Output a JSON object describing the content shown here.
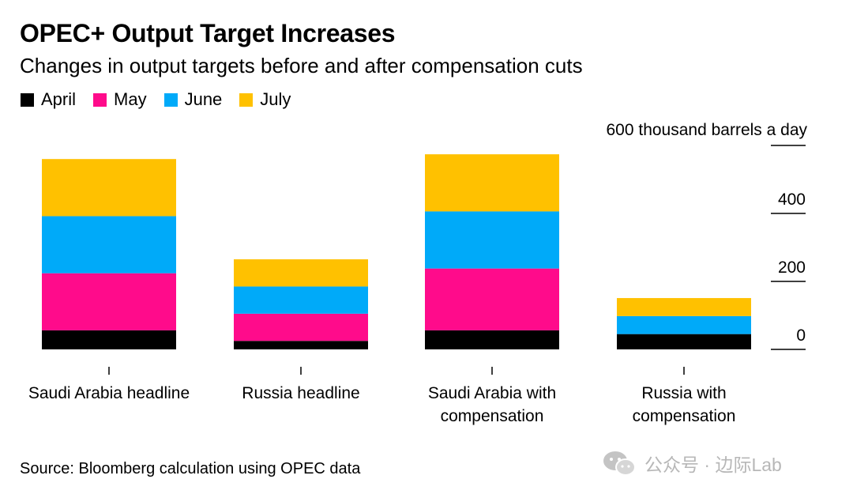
{
  "title": "OPEC+ Output Target Increases",
  "subtitle": "Changes in output targets before and after compensation cuts",
  "source": "Source: Bloomberg calculation using OPEC data",
  "watermark": "公众号 · 边际Lab",
  "colors": {
    "April": "#000000",
    "May": "#ff0b8b",
    "June": "#00aaf9",
    "July": "#ffc100",
    "axis": "#000000",
    "watermark": "#b7b7b7"
  },
  "chart_data": {
    "type": "bar",
    "stacked": true,
    "categories": [
      "Saudi Arabia headline",
      "Russia headline",
      "Saudi Arabia with compensation",
      "Russia with compensation"
    ],
    "category_lines": [
      [
        "Saudi Arabia headline"
      ],
      [
        "Russia headline"
      ],
      [
        "Saudi Arabia with",
        "compensation"
      ],
      [
        "Russia with",
        "compensation"
      ]
    ],
    "series": [
      {
        "name": "April",
        "values": [
          56,
          25,
          56,
          45
        ]
      },
      {
        "name": "May",
        "values": [
          168,
          80,
          182,
          0
        ]
      },
      {
        "name": "June",
        "values": [
          168,
          80,
          168,
          53
        ]
      },
      {
        "name": "July",
        "values": [
          168,
          80,
          168,
          53
        ]
      }
    ],
    "y_ticks": [
      0,
      200,
      400
    ],
    "y_top_label": "600 thousand barrels a day",
    "y_top_value": 600,
    "ylim": [
      0,
      600
    ],
    "grid": false,
    "legend_position": "top-left"
  }
}
